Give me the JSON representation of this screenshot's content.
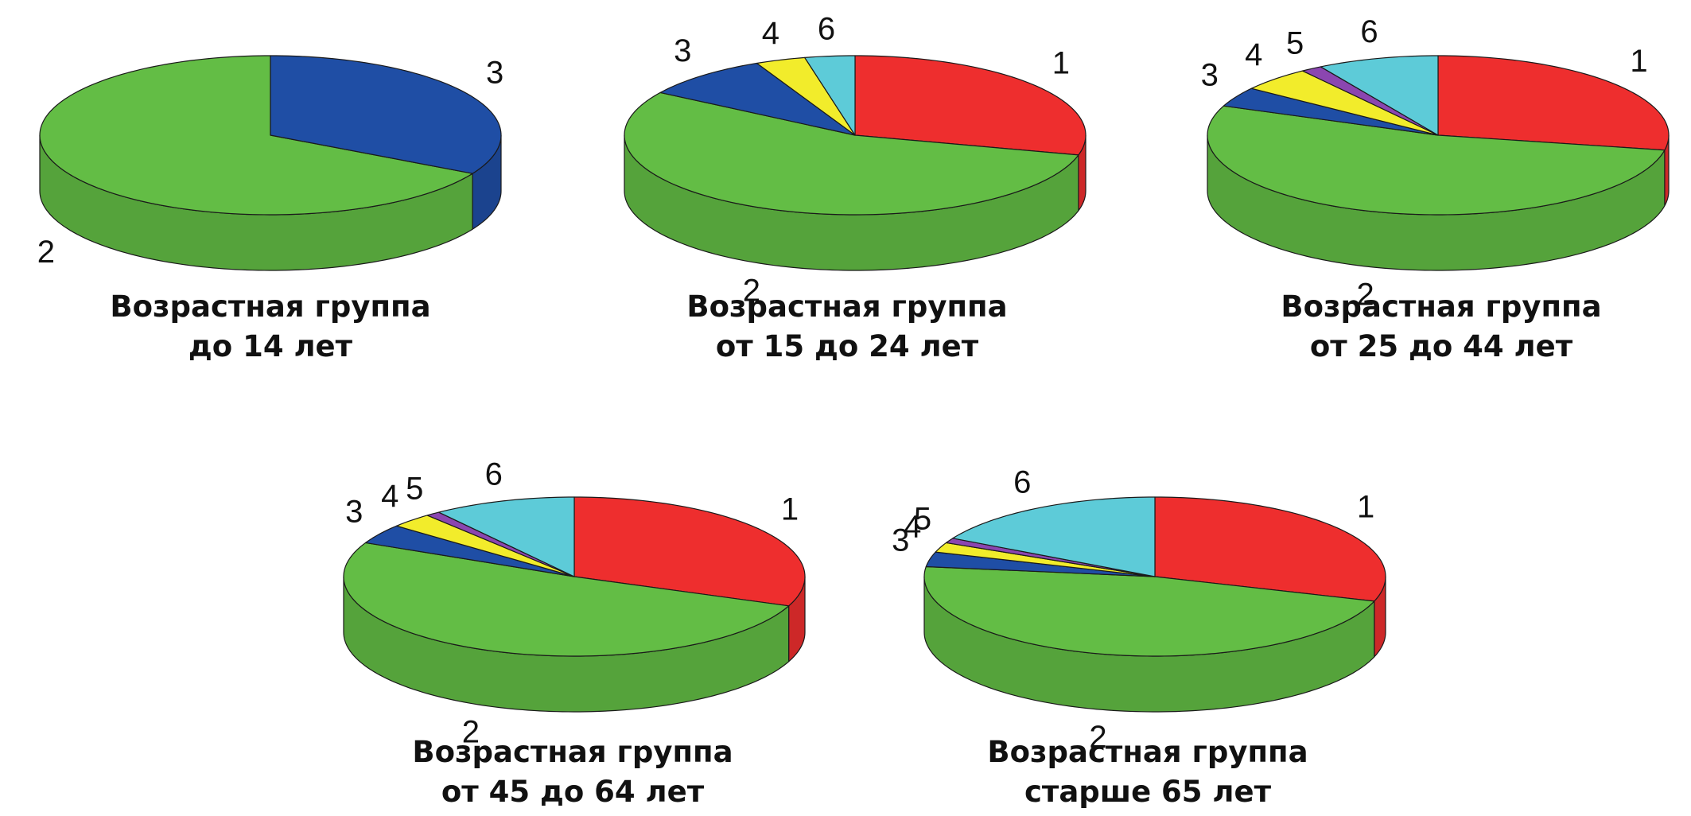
{
  "colors": {
    "1": "#ee2e2e",
    "2": "#63bd45",
    "3": "#1f4ea5",
    "4": "#f2ec2b",
    "5": "#8b46b0",
    "6": "#5dcbd8"
  },
  "chart_data": [
    {
      "type": "pie",
      "title": "Возрастная группа",
      "subtitle": "до 14 лет",
      "slices": [
        {
          "label": "2",
          "value": 67.0
        },
        {
          "label": "3",
          "value": 33.0
        }
      ]
    },
    {
      "type": "pie",
      "title": "Возрастная группа",
      "subtitle": "от 15 до 24 лет",
      "slices": [
        {
          "label": "1",
          "value": 29.0
        },
        {
          "label": "2",
          "value": 55.0
        },
        {
          "label": "3",
          "value": 9.0
        },
        {
          "label": "4",
          "value": 3.5
        },
        {
          "label": "6",
          "value": 3.5
        }
      ]
    },
    {
      "type": "pie",
      "title": "Возрастная группа",
      "subtitle": "от 25 до 44 лет",
      "slices": [
        {
          "label": "1",
          "value": 28.0
        },
        {
          "label": "2",
          "value": 53.0
        },
        {
          "label": "3",
          "value": 4.0
        },
        {
          "label": "4",
          "value": 5.0
        },
        {
          "label": "5",
          "value": 1.5
        },
        {
          "label": "6",
          "value": 8.5
        }
      ]
    },
    {
      "type": "pie",
      "title": "Возрастная группа",
      "subtitle": "от 45 до 64 лет",
      "slices": [
        {
          "label": "1",
          "value": 31.0
        },
        {
          "label": "2",
          "value": 51.0
        },
        {
          "label": "3",
          "value": 4.0
        },
        {
          "label": "4",
          "value": 3.0
        },
        {
          "label": "5",
          "value": 1.0
        },
        {
          "label": "6",
          "value": 10.0
        }
      ]
    },
    {
      "type": "pie",
      "title": "Возрастная группа",
      "subtitle": "старше 65 лет",
      "slices": [
        {
          "label": "1",
          "value": 30.0
        },
        {
          "label": "2",
          "value": 47.0
        },
        {
          "label": "3",
          "value": 3.0
        },
        {
          "label": "4",
          "value": 2.0
        },
        {
          "label": "5",
          "value": 1.0
        },
        {
          "label": "6",
          "value": 17.0
        }
      ]
    }
  ]
}
